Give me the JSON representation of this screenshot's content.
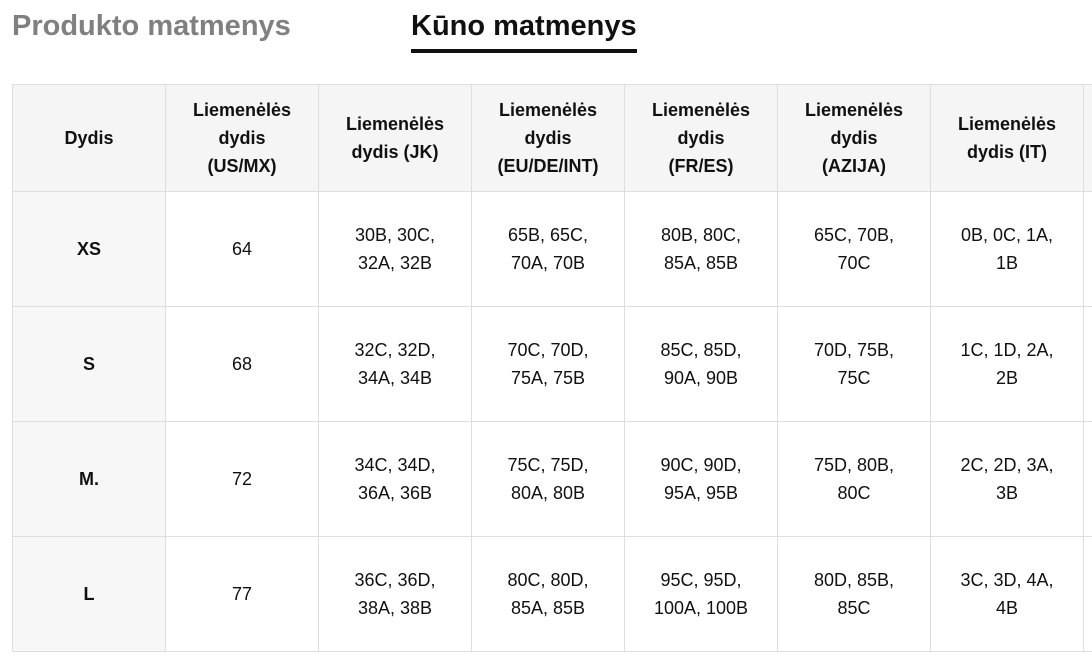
{
  "tabs": [
    "Produkto matmenys",
    "Kūno matmenys"
  ],
  "table": {
    "headers": [
      "Dydis",
      "Liemenėlės dydis (US/MX)",
      "Liemenėlės dydis (JK)",
      "Liemenėlės dydis (EU/DE/INT)",
      "Liemenėlės dydis (FR/ES)",
      "Liemenėlės dydis (AZIJA)",
      "Liemenėlės dydis (IT)"
    ],
    "rows": [
      [
        "XS",
        "64",
        "30B, 30C, 32A, 32B",
        "65B, 65C, 70A, 70B",
        "80B, 80C, 85A, 85B",
        "65C, 70B, 70C",
        "0B, 0C, 1A, 1B"
      ],
      [
        "S",
        "68",
        "32C, 32D, 34A, 34B",
        "70C, 70D, 75A, 75B",
        "85C, 85D, 90A, 90B",
        "70D, 75B, 75C",
        "1C, 1D, 2A, 2B"
      ],
      [
        "M.",
        "72",
        "34C, 34D, 36A, 36B",
        "75C, 75D, 80A, 80B",
        "90C, 90D, 95A, 95B",
        "75D, 80B, 80C",
        "2C, 2D, 3A, 3B"
      ],
      [
        "L",
        "77",
        "36C, 36D, 38A, 38B",
        "80C, 80D, 85A, 85B",
        "95C, 95D, 100A, 100B",
        "80D, 85B, 85C",
        "3C, 3D, 4A, 4B"
      ]
    ]
  }
}
